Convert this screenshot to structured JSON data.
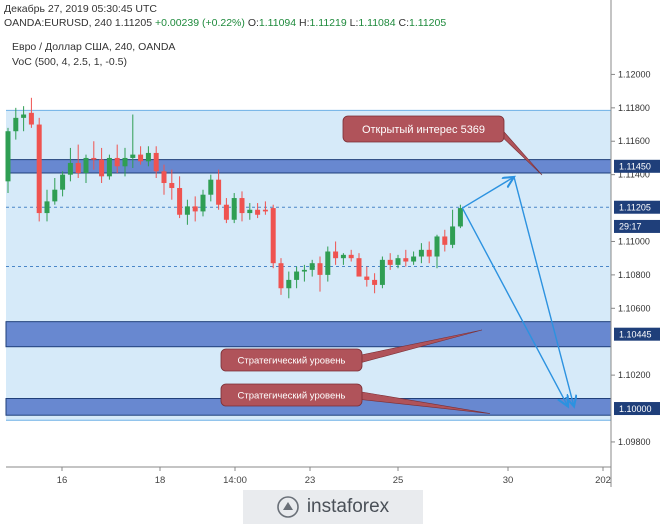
{
  "header": {
    "datetime": "Декабрь 27, 2019 05:30:45 UTC",
    "symbol": "OANDA:EURUSD, 240",
    "last": "1.11205",
    "change": "+0.00239 (+0.22%)",
    "o_label": "O:",
    "o_val": "1.11094",
    "h_label": "H:",
    "h_val": "1.11219",
    "l_label": "L:",
    "l_val": "1.11084",
    "c_label": "C:",
    "c_val": "1.11205"
  },
  "legend": {
    "title": "Евро / Доллар США, 240, OANDA",
    "indicator": "VoC (500, 4, 2.5, 1, -0.5)"
  },
  "colors": {
    "up": "#2f9e53",
    "down": "#ef5350",
    "band_fill": "#d6eaf9",
    "level_fill": "#5577c9",
    "callout": "#b0535a",
    "arrow": "#2c92e0"
  },
  "chart_data": {
    "type": "candlestick",
    "ylim": [
      1.0965,
      1.1223
    ],
    "price_ticks": [
      "1.12000",
      "1.11800",
      "1.11600",
      "1.11400",
      "1.11000",
      "1.10800",
      "1.10600",
      "1.10200",
      "1.09800"
    ],
    "date_ticks": [
      "16",
      "18",
      "14:00",
      "23",
      "25",
      "30",
      "202"
    ],
    "price_badges": [
      {
        "label": "1.11450",
        "value": 1.1145,
        "color": "#1f3f7a"
      },
      {
        "label": "1.11205",
        "value": 1.11205,
        "color": "#1f3f7a"
      },
      {
        "label": "29:17",
        "value": 1.1109,
        "color": "#1f3f7a"
      },
      {
        "label": "1.10445",
        "value": 1.10445,
        "color": "#1f3f7a"
      },
      {
        "label": "1.10000",
        "value": 1.1,
        "color": "#1f3f7a"
      }
    ],
    "band": [
      1.0993,
      1.11785
    ],
    "levels": [
      {
        "low": 1.1141,
        "high": 1.1149,
        "value": 1.1145
      },
      {
        "low": 1.1037,
        "high": 1.1052,
        "value": 1.10445
      },
      {
        "low": 1.0996,
        "high": 1.1006,
        "value": 1.1
      }
    ],
    "dashed_lines": [
      1.11205,
      1.1085
    ],
    "annotations": [
      {
        "text": "Открытый интерес 5369"
      },
      {
        "text": "Стратегический уровень"
      },
      {
        "text": "Стратегический уровень"
      }
    ],
    "candles": [
      {
        "o": 1.1136,
        "h": 1.1168,
        "l": 1.1129,
        "c": 1.1166
      },
      {
        "o": 1.1166,
        "h": 1.118,
        "l": 1.1161,
        "c": 1.1174
      },
      {
        "o": 1.1174,
        "h": 1.1181,
        "l": 1.1166,
        "c": 1.1176
      },
      {
        "o": 1.1177,
        "h": 1.1186,
        "l": 1.1168,
        "c": 1.117
      },
      {
        "o": 1.117,
        "h": 1.1174,
        "l": 1.1112,
        "c": 1.1117
      },
      {
        "o": 1.1117,
        "h": 1.1131,
        "l": 1.1112,
        "c": 1.1124
      },
      {
        "o": 1.1124,
        "h": 1.1138,
        "l": 1.1122,
        "c": 1.1131
      },
      {
        "o": 1.1131,
        "h": 1.1142,
        "l": 1.1127,
        "c": 1.114
      },
      {
        "o": 1.114,
        "h": 1.1156,
        "l": 1.1136,
        "c": 1.1147
      },
      {
        "o": 1.1147,
        "h": 1.1158,
        "l": 1.1138,
        "c": 1.1141
      },
      {
        "o": 1.1141,
        "h": 1.1152,
        "l": 1.1135,
        "c": 1.115
      },
      {
        "o": 1.115,
        "h": 1.116,
        "l": 1.1143,
        "c": 1.1149
      },
      {
        "o": 1.1149,
        "h": 1.1156,
        "l": 1.1135,
        "c": 1.1139
      },
      {
        "o": 1.1139,
        "h": 1.1152,
        "l": 1.1137,
        "c": 1.115
      },
      {
        "o": 1.115,
        "h": 1.1158,
        "l": 1.1141,
        "c": 1.1145
      },
      {
        "o": 1.1145,
        "h": 1.1156,
        "l": 1.1139,
        "c": 1.115
      },
      {
        "o": 1.115,
        "h": 1.1176,
        "l": 1.1144,
        "c": 1.1152
      },
      {
        "o": 1.1152,
        "h": 1.1157,
        "l": 1.1146,
        "c": 1.1148
      },
      {
        "o": 1.1148,
        "h": 1.1157,
        "l": 1.1145,
        "c": 1.1153
      },
      {
        "o": 1.1153,
        "h": 1.1157,
        "l": 1.1138,
        "c": 1.1142
      },
      {
        "o": 1.1142,
        "h": 1.1146,
        "l": 1.1128,
        "c": 1.1135
      },
      {
        "o": 1.1135,
        "h": 1.1143,
        "l": 1.1125,
        "c": 1.1132
      },
      {
        "o": 1.1132,
        "h": 1.1139,
        "l": 1.1114,
        "c": 1.1116
      },
      {
        "o": 1.1116,
        "h": 1.1125,
        "l": 1.111,
        "c": 1.1121
      },
      {
        "o": 1.1121,
        "h": 1.1127,
        "l": 1.1112,
        "c": 1.1118
      },
      {
        "o": 1.1118,
        "h": 1.1131,
        "l": 1.1115,
        "c": 1.1128
      },
      {
        "o": 1.1128,
        "h": 1.114,
        "l": 1.1124,
        "c": 1.1137
      },
      {
        "o": 1.1137,
        "h": 1.1143,
        "l": 1.1119,
        "c": 1.1122
      },
      {
        "o": 1.1122,
        "h": 1.1126,
        "l": 1.1111,
        "c": 1.1113
      },
      {
        "o": 1.1113,
        "h": 1.1129,
        "l": 1.1111,
        "c": 1.1126
      },
      {
        "o": 1.1126,
        "h": 1.113,
        "l": 1.1112,
        "c": 1.1117
      },
      {
        "o": 1.1117,
        "h": 1.1123,
        "l": 1.1113,
        "c": 1.1119
      },
      {
        "o": 1.1119,
        "h": 1.1123,
        "l": 1.1114,
        "c": 1.1116
      },
      {
        "o": 1.1119,
        "h": 1.1124,
        "l": 1.1116,
        "c": 1.1118
      },
      {
        "o": 1.112,
        "h": 1.1122,
        "l": 1.1084,
        "c": 1.1087
      },
      {
        "o": 1.1087,
        "h": 1.109,
        "l": 1.1068,
        "c": 1.1072
      },
      {
        "o": 1.1072,
        "h": 1.1082,
        "l": 1.1066,
        "c": 1.1077
      },
      {
        "o": 1.1077,
        "h": 1.1085,
        "l": 1.1072,
        "c": 1.1082
      },
      {
        "o": 1.1082,
        "h": 1.1086,
        "l": 1.1076,
        "c": 1.1083
      },
      {
        "o": 1.1083,
        "h": 1.1089,
        "l": 1.1079,
        "c": 1.1087
      },
      {
        "o": 1.1087,
        "h": 1.1091,
        "l": 1.107,
        "c": 1.108
      },
      {
        "o": 1.108,
        "h": 1.1097,
        "l": 1.1076,
        "c": 1.1094
      },
      {
        "o": 1.1094,
        "h": 1.11,
        "l": 1.1086,
        "c": 1.109
      },
      {
        "o": 1.109,
        "h": 1.1093,
        "l": 1.1086,
        "c": 1.1092
      },
      {
        "o": 1.1092,
        "h": 1.1095,
        "l": 1.1088,
        "c": 1.109
      },
      {
        "o": 1.109,
        "h": 1.1093,
        "l": 1.1079,
        "c": 1.1079
      },
      {
        "o": 1.1079,
        "h": 1.1085,
        "l": 1.1073,
        "c": 1.1077
      },
      {
        "o": 1.1077,
        "h": 1.1081,
        "l": 1.1069,
        "c": 1.1074
      },
      {
        "o": 1.1074,
        "h": 1.1091,
        "l": 1.1072,
        "c": 1.1089
      },
      {
        "o": 1.1089,
        "h": 1.1093,
        "l": 1.1083,
        "c": 1.1086
      },
      {
        "o": 1.1086,
        "h": 1.1092,
        "l": 1.1084,
        "c": 1.109
      },
      {
        "o": 1.109,
        "h": 1.1095,
        "l": 1.1085,
        "c": 1.1088
      },
      {
        "o": 1.1088,
        "h": 1.1094,
        "l": 1.1086,
        "c": 1.1091
      },
      {
        "o": 1.1091,
        "h": 1.1099,
        "l": 1.1087,
        "c": 1.1095
      },
      {
        "o": 1.1095,
        "h": 1.11,
        "l": 1.1087,
        "c": 1.1091
      },
      {
        "o": 1.1091,
        "h": 1.1104,
        "l": 1.1084,
        "c": 1.1103
      },
      {
        "o": 1.1103,
        "h": 1.1107,
        "l": 1.1094,
        "c": 1.1098
      },
      {
        "o": 1.1098,
        "h": 1.1119,
        "l": 1.1096,
        "c": 1.1109
      },
      {
        "o": 1.1109,
        "h": 1.1122,
        "l": 1.1108,
        "c": 1.112
      }
    ]
  },
  "watermark": {
    "text": "instaforex"
  }
}
